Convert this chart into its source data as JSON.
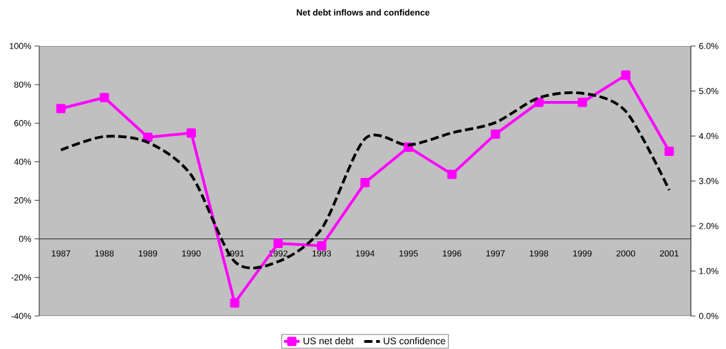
{
  "chart_data": {
    "type": "line",
    "title": "Net debt inflows and confidence",
    "categories": [
      "1987",
      "1988",
      "1989",
      "1990",
      "1991",
      "1992",
      "1993",
      "1994",
      "1995",
      "1996",
      "1997",
      "1998",
      "1999",
      "2000",
      "2001"
    ],
    "series": [
      {
        "name": "US net debt",
        "color": "#ff00ff",
        "marker": "square",
        "line_style": "solid",
        "values": [
          67.6,
          73.3,
          52.7,
          54.9,
          -33.2,
          -2.3,
          -3.6,
          29.2,
          47.6,
          33.5,
          54.3,
          70.8,
          70.8,
          84.9,
          45.4
        ]
      },
      {
        "name": "US confidence",
        "color": "#000000",
        "marker": "none",
        "line_style": "dashed",
        "axis": "y2",
        "values": [
          3.69,
          3.99,
          3.86,
          3.13,
          1.21,
          1.21,
          1.94,
          3.94,
          3.8,
          4.07,
          4.3,
          4.85,
          4.95,
          4.55,
          2.8
        ]
      }
    ],
    "ylim": [
      -40,
      100
    ],
    "yticks": [
      {
        "value": -40,
        "label": "-40%"
      },
      {
        "value": -20,
        "label": "-20%"
      },
      {
        "value": 0,
        "label": "0%"
      },
      {
        "value": 20,
        "label": "20%"
      },
      {
        "value": 40,
        "label": "40%"
      },
      {
        "value": 60,
        "label": "60%"
      },
      {
        "value": 80,
        "label": "80%"
      },
      {
        "value": 100,
        "label": "100%"
      }
    ],
    "y2lim": [
      0,
      6
    ],
    "y2ticks": [
      {
        "value": 0,
        "label": "0.0%"
      },
      {
        "value": 1,
        "label": "1.0%"
      },
      {
        "value": 2,
        "label": "2.0%"
      },
      {
        "value": 3,
        "label": "3.0%"
      },
      {
        "value": 4,
        "label": "4.0%"
      },
      {
        "value": 5,
        "label": "5.0%"
      },
      {
        "value": 6,
        "label": "6.0%"
      }
    ],
    "legend": "bottom",
    "grid": false
  }
}
